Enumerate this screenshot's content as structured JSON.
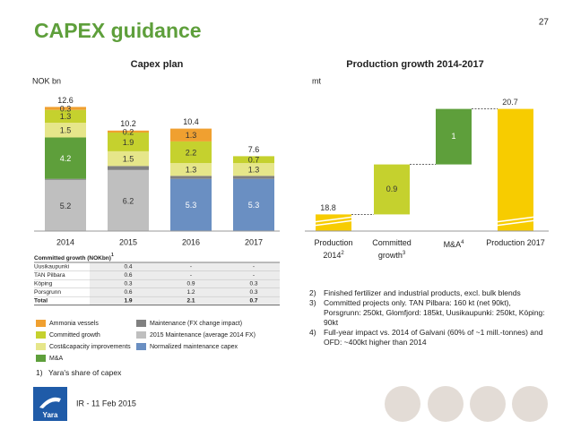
{
  "title": "CAPEX guidance",
  "page_number": "27",
  "chart_data": [
    {
      "type": "stacked_bar",
      "title": "Capex plan",
      "unit_label": "NOK bn",
      "categories": [
        "2014",
        "2015",
        "2016",
        "2017"
      ],
      "series": [
        {
          "name": "Ammonia vessels",
          "color": "#f0a030",
          "label_color": "#333333",
          "values": [
            0.3,
            0.2,
            1.3,
            null
          ]
        },
        {
          "name": "Committed growth",
          "color": "#c5d12e",
          "label_color": "#333333",
          "values": [
            1.3,
            1.9,
            2.2,
            0.7
          ]
        },
        {
          "name": "Cost&capacity improvements",
          "color": "#e6e68a",
          "label_color": "#333333",
          "values": [
            1.5,
            1.5,
            1.3,
            1.3
          ]
        },
        {
          "name": "M&A",
          "color": "#5e9f3b",
          "label_color": "#ffffff",
          "values": [
            4.2,
            null,
            null,
            null
          ]
        },
        {
          "name": "Maintenance (FX change impact)",
          "color": "#808080",
          "label_color": "#ffffff",
          "show_labels": false,
          "values": [
            0.1,
            0.4,
            0.3,
            0.3
          ]
        },
        {
          "name": "2015 Maintenance (average 2014 FX)",
          "color": "#bfbfbf",
          "label_color": "#333333",
          "values": [
            5.2,
            6.2,
            null,
            null
          ]
        },
        {
          "name": "Normalized maintenance capex",
          "color": "#6a8fc2",
          "label_color": "#ffffff",
          "values": [
            null,
            null,
            5.3,
            5.3
          ]
        }
      ],
      "totals": [
        12.6,
        10.2,
        10.4,
        7.6
      ],
      "ylim": [
        0,
        13
      ]
    },
    {
      "type": "waterfall",
      "title": "Production growth 2014-2017",
      "unit_label": "mt",
      "categories": [
        "Production 2014",
        "Committed growth",
        "M&A",
        "Production 2017"
      ],
      "category_superscripts": [
        "2",
        "3",
        "4",
        null
      ],
      "values": [
        18.8,
        0.9,
        1.0,
        20.7
      ],
      "is_total": [
        true,
        false,
        false,
        true
      ],
      "colors": [
        "#f7cc00",
        "#c5d12e",
        "#5e9f3b",
        "#f7cc00"
      ],
      "label_colors": [
        "#333333",
        "#333333",
        "#ffffff",
        "#333333"
      ],
      "ylim": [
        18.5,
        21
      ],
      "axis_break": true
    }
  ],
  "table": {
    "title": "Committed growth (NOKbn)",
    "title_marker": "1",
    "rows": [
      [
        "Uusikaupunki",
        0.4,
        "-",
        "-"
      ],
      [
        "TAN Pilbara",
        0.6,
        "-",
        "-"
      ],
      [
        "Köping",
        0.3,
        0.9,
        0.3
      ],
      [
        "Porsgrunn",
        0.6,
        1.2,
        0.3
      ],
      [
        "Total",
        1.9,
        2.1,
        0.7
      ]
    ]
  },
  "footnotes_left": [
    {
      "marker": "1)",
      "text": "Yara's share of capex"
    }
  ],
  "footnotes_right": [
    {
      "marker": "2)",
      "text": "Finished fertilizer and industrial products, excl. bulk blends"
    },
    {
      "marker": "3)",
      "text": "Committed projects only. TAN Pilbara: 160 kt (net 90kt), Porsgrunn: 250kt, Glomfjord: 185kt, Uusikaupunki: 250kt, Köping: 90kt"
    },
    {
      "marker": "4)",
      "text": "Full-year impact vs. 2014 of Galvani (60% of  ~1 mill.-tonnes) and OFD: ~400kt higher than 2014"
    }
  ],
  "footer": {
    "text": "IR - 11 Feb 2015",
    "logo_text": "Yara"
  }
}
